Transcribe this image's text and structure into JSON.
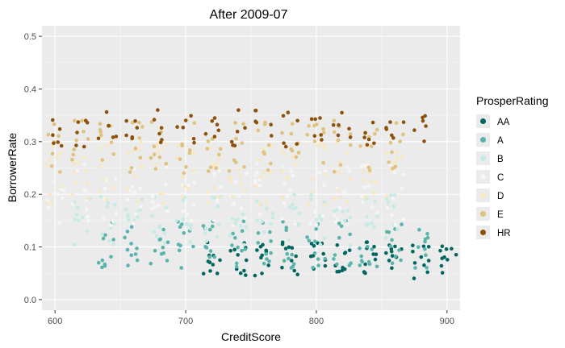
{
  "chart_data": {
    "type": "scatter",
    "title": "After 2009-07",
    "xlabel": "CreditScore",
    "ylabel": "BorrowerRate",
    "xlim": [
      590,
      910
    ],
    "ylim": [
      -0.02,
      0.52
    ],
    "x_ticks": [
      600,
      700,
      800,
      900
    ],
    "y_ticks": [
      0.0,
      0.1,
      0.2,
      0.3,
      0.4,
      0.5
    ],
    "x_tick_labels": [
      "600",
      "700",
      "800",
      "900"
    ],
    "y_tick_labels": [
      "0.0",
      "0.1",
      "0.2",
      "0.3",
      "0.4",
      "0.5"
    ],
    "grid": true,
    "panel_background": "#ebebeb",
    "legend_position": "right",
    "legend": {
      "title": "ProsperRating",
      "labels": [
        "AA",
        "A",
        "B",
        "C",
        "D",
        "E",
        "HR"
      ]
    },
    "series": [
      {
        "name": "AA",
        "color": "#01665e",
        "x_range": [
          720,
          900
        ],
        "y_range": [
          0.04,
          0.11
        ],
        "density": 1.0
      },
      {
        "name": "A",
        "color": "#5ab4ac",
        "x_range": [
          640,
          880
        ],
        "y_range": [
          0.06,
          0.15
        ],
        "density": 1.0
      },
      {
        "name": "B",
        "color": "#c7eae5",
        "x_range": [
          620,
          860
        ],
        "y_range": [
          0.1,
          0.2
        ],
        "density": 0.9
      },
      {
        "name": "C",
        "color": "#f5f5f5",
        "x_range": [
          600,
          860
        ],
        "y_range": [
          0.14,
          0.26
        ],
        "density": 0.9
      },
      {
        "name": "D",
        "color": "#f6e8c3",
        "x_range": [
          600,
          860
        ],
        "y_range": [
          0.18,
          0.3
        ],
        "density": 0.85
      },
      {
        "name": "E",
        "color": "#dfc27d",
        "x_range": [
          600,
          860
        ],
        "y_range": [
          0.24,
          0.34
        ],
        "density": 0.8
      },
      {
        "name": "HR",
        "color": "#8c510a",
        "x_range": [
          600,
          880
        ],
        "y_range": [
          0.29,
          0.36
        ],
        "density": 0.6
      }
    ],
    "score_bands": [
      600,
      620,
      640,
      660,
      680,
      700,
      720,
      740,
      760,
      780,
      800,
      820,
      840,
      860,
      880,
      900
    ]
  }
}
